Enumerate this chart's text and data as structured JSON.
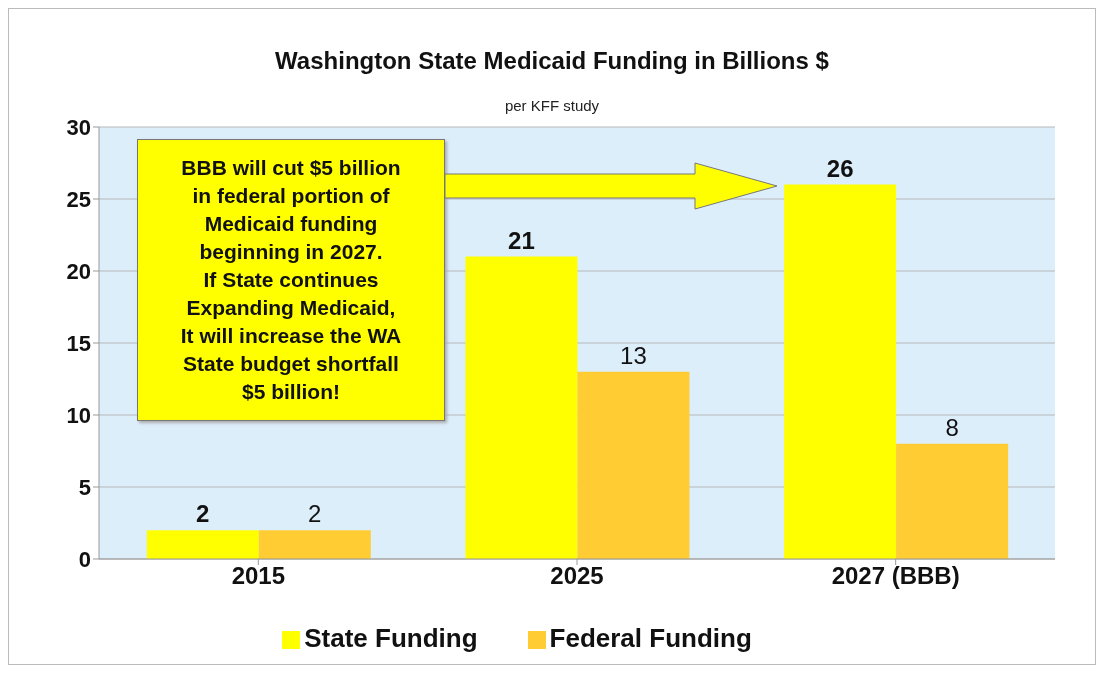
{
  "chart_data": {
    "type": "bar",
    "title": "Washington State Medicaid Funding in Billions $",
    "subtitle": "per KFF study",
    "categories": [
      "2015",
      "2025",
      "2027 (BBB)"
    ],
    "series": [
      {
        "name": "State Funding",
        "color": "#ffff00",
        "values": [
          2,
          21,
          26
        ]
      },
      {
        "name": "Federal Funding",
        "color": "#ffcc33",
        "values": [
          2,
          13,
          8
        ]
      }
    ],
    "ylim": [
      0,
      30
    ],
    "yticks": [
      0,
      5,
      10,
      15,
      20,
      25,
      30
    ],
    "grid": "y",
    "legend": "bottom",
    "data_labels": true,
    "annotations": [
      "BBB will cut $5 billion\nin federal portion of\nMedicaid funding\nbeginning in 2027.\nIf State continues\nExpanding Medicaid,\nIt will increase the WA\nState budget shortfall\n$5 billion!"
    ]
  }
}
